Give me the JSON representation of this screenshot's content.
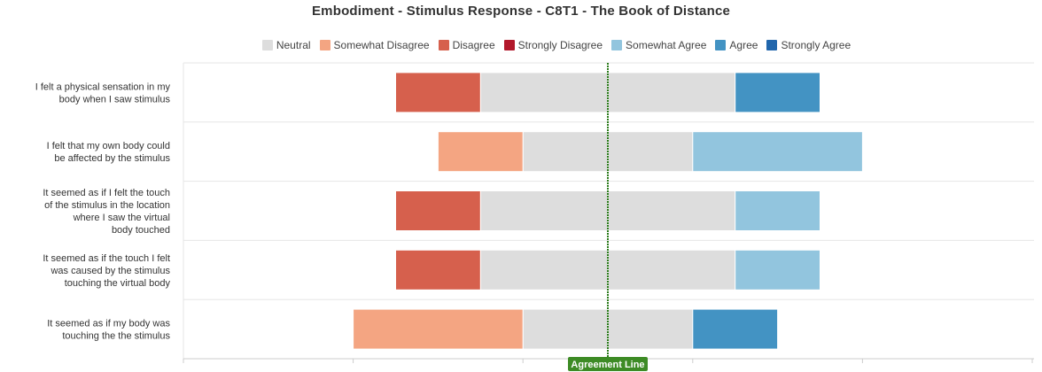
{
  "chart_data": {
    "type": "bar",
    "title": "Embodiment - Stimulus Response - C8T1 - The Book of Distance",
    "xlabel": "",
    "ylabel": "",
    "legend_position": "top",
    "agreement_line_label": "Agreement Line",
    "legend": [
      {
        "name": "Neutral",
        "color": "#dddddd"
      },
      {
        "name": "Somewhat Disagree",
        "color": "#f4a582"
      },
      {
        "name": "Disagree",
        "color": "#d6604d"
      },
      {
        "name": "Strongly Disagree",
        "color": "#b2182b"
      },
      {
        "name": "Somewhat Agree",
        "color": "#92c5de"
      },
      {
        "name": "Agree",
        "color": "#4393c3"
      },
      {
        "name": "Strongly Agree",
        "color": "#2166ac"
      }
    ],
    "categories": [
      [
        "I felt a physical sensation in my",
        "body when I saw stimulus"
      ],
      [
        "I felt that my own body could",
        "be affected by the stimulus"
      ],
      [
        "It seemed as if I felt the touch",
        "of the stimulus in the location",
        "where I saw the virtual",
        "body touched"
      ],
      [
        "It seemed as if the touch I felt",
        "was caused by the stimulus",
        "touching the virtual body"
      ],
      [
        "It seemed as if my body was",
        "touching the the stimulus"
      ]
    ],
    "stack_order": [
      "Strongly Disagree",
      "Disagree",
      "Somewhat Disagree",
      "Neutral",
      "Somewhat Agree",
      "Agree",
      "Strongly Agree"
    ],
    "series": [
      {
        "name": "Strongly Disagree",
        "values": [
          0,
          0,
          0,
          0,
          0
        ]
      },
      {
        "name": "Disagree",
        "values": [
          1,
          0,
          1,
          1,
          0
        ]
      },
      {
        "name": "Somewhat Disagree",
        "values": [
          0,
          1,
          0,
          0,
          2
        ]
      },
      {
        "name": "Neutral",
        "values": [
          3,
          2,
          3,
          3,
          2
        ]
      },
      {
        "name": "Somewhat Agree",
        "values": [
          0,
          2,
          1,
          1,
          0
        ]
      },
      {
        "name": "Agree",
        "values": [
          1,
          0,
          0,
          0,
          1
        ]
      },
      {
        "name": "Strongly Agree",
        "values": [
          0,
          0,
          0,
          0,
          0
        ]
      }
    ],
    "xlim": [
      -5,
      5
    ],
    "grid": true
  }
}
